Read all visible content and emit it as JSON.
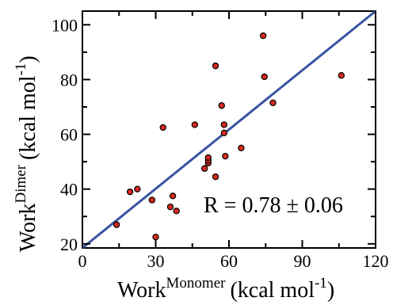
{
  "chart_data": {
    "type": "scatter",
    "title": "",
    "xlabel": {
      "main": "Work",
      "sup": "Monomer",
      "unit_prefix": "(kcal mol",
      "unit_sup": "-1",
      "unit_suffix": ")"
    },
    "ylabel": {
      "main": "Work",
      "sup": "Dimer",
      "unit_prefix": "(kcal mol",
      "unit_sup": "-1",
      "unit_suffix": ")"
    },
    "xlim": [
      0,
      120
    ],
    "ylim": [
      18.5,
      105
    ],
    "xticks": [
      0,
      30,
      60,
      90,
      120
    ],
    "yticks": [
      20,
      40,
      60,
      80,
      100
    ],
    "grid": false,
    "legend": "none",
    "annotation": "R = 0.78 ± 0.06",
    "colors": {
      "point_fill": "#d62a20",
      "point_stroke": "#000000",
      "fit_line": "#3953a4",
      "axis": "#000000"
    },
    "fit_line": {
      "x": [
        0,
        120
      ],
      "y": [
        18.5,
        105
      ]
    },
    "points": [
      {
        "x": 14,
        "y": 27
      },
      {
        "x": 19.5,
        "y": 39
      },
      {
        "x": 22.5,
        "y": 40
      },
      {
        "x": 28.5,
        "y": 36
      },
      {
        "x": 30,
        "y": 22.5
      },
      {
        "x": 33,
        "y": 62.5
      },
      {
        "x": 36,
        "y": 33.5
      },
      {
        "x": 37,
        "y": 37.5
      },
      {
        "x": 38.5,
        "y": 32
      },
      {
        "x": 46,
        "y": 63.5
      },
      {
        "x": 50,
        "y": 47.5
      },
      {
        "x": 51.5,
        "y": 49.5
      },
      {
        "x": 51.5,
        "y": 50.5
      },
      {
        "x": 51.5,
        "y": 51.5
      },
      {
        "x": 54.5,
        "y": 44.5
      },
      {
        "x": 54.5,
        "y": 85
      },
      {
        "x": 57,
        "y": 70.5
      },
      {
        "x": 58,
        "y": 60.5
      },
      {
        "x": 58,
        "y": 63.5
      },
      {
        "x": 58.5,
        "y": 52
      },
      {
        "x": 65,
        "y": 55
      },
      {
        "x": 74,
        "y": 96
      },
      {
        "x": 74.5,
        "y": 81
      },
      {
        "x": 78,
        "y": 71.5
      },
      {
        "x": 106,
        "y": 81.5
      }
    ]
  }
}
